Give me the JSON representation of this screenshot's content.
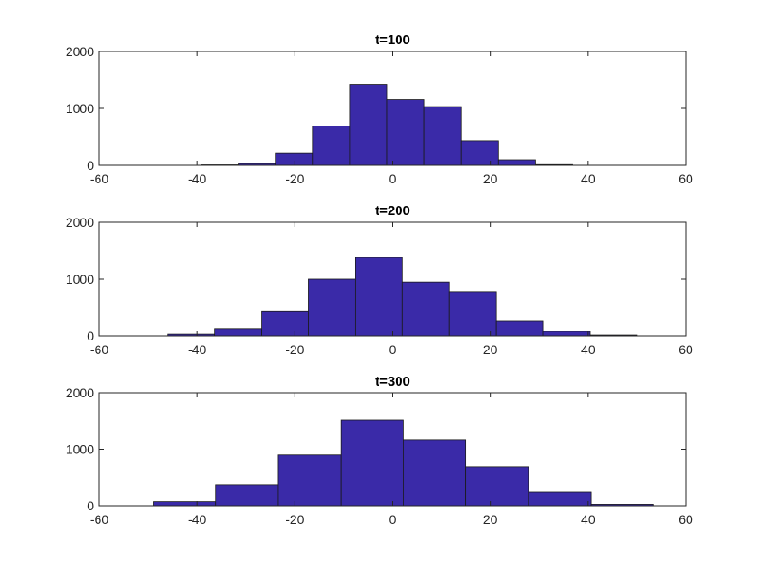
{
  "colors": {
    "bar": "#3a2aa8",
    "axis": "#262626",
    "background": "#ffffff"
  },
  "chart_data": [
    {
      "type": "bar",
      "title": "t=100",
      "xlim": [
        -60,
        60
      ],
      "ylim": [
        0,
        2000
      ],
      "xticks": [
        -60,
        -40,
        -20,
        0,
        20,
        40,
        60
      ],
      "yticks": [
        0,
        1000,
        2000
      ],
      "bin_edges": [
        -39.2,
        -31.6,
        -24.0,
        -16.4,
        -8.8,
        -1.2,
        6.4,
        14.0,
        21.6,
        29.2,
        36.8
      ],
      "values": [
        8,
        30,
        220,
        690,
        1420,
        1150,
        1030,
        430,
        95,
        12
      ]
    },
    {
      "type": "bar",
      "title": "t=200",
      "xlim": [
        -60,
        60
      ],
      "ylim": [
        0,
        2000
      ],
      "xticks": [
        -60,
        -40,
        -20,
        0,
        20,
        40,
        60
      ],
      "yticks": [
        0,
        1000,
        2000
      ],
      "bin_edges": [
        -46.0,
        -36.4,
        -26.8,
        -17.2,
        -7.6,
        2.0,
        11.6,
        21.2,
        30.8,
        40.4,
        50.0
      ],
      "values": [
        30,
        130,
        440,
        1000,
        1380,
        950,
        780,
        270,
        80,
        15
      ]
    },
    {
      "type": "bar",
      "title": "t=300",
      "xlim": [
        -60,
        60
      ],
      "ylim": [
        0,
        2000
      ],
      "xticks": [
        -60,
        -40,
        -20,
        0,
        20,
        40,
        60
      ],
      "yticks": [
        0,
        1000,
        2000
      ],
      "bin_edges": [
        -49.0,
        -36.2,
        -23.4,
        -10.6,
        2.2,
        15.0,
        27.8,
        40.6,
        53.4
      ],
      "values": [
        70,
        370,
        900,
        1520,
        1170,
        690,
        240,
        25
      ]
    }
  ]
}
